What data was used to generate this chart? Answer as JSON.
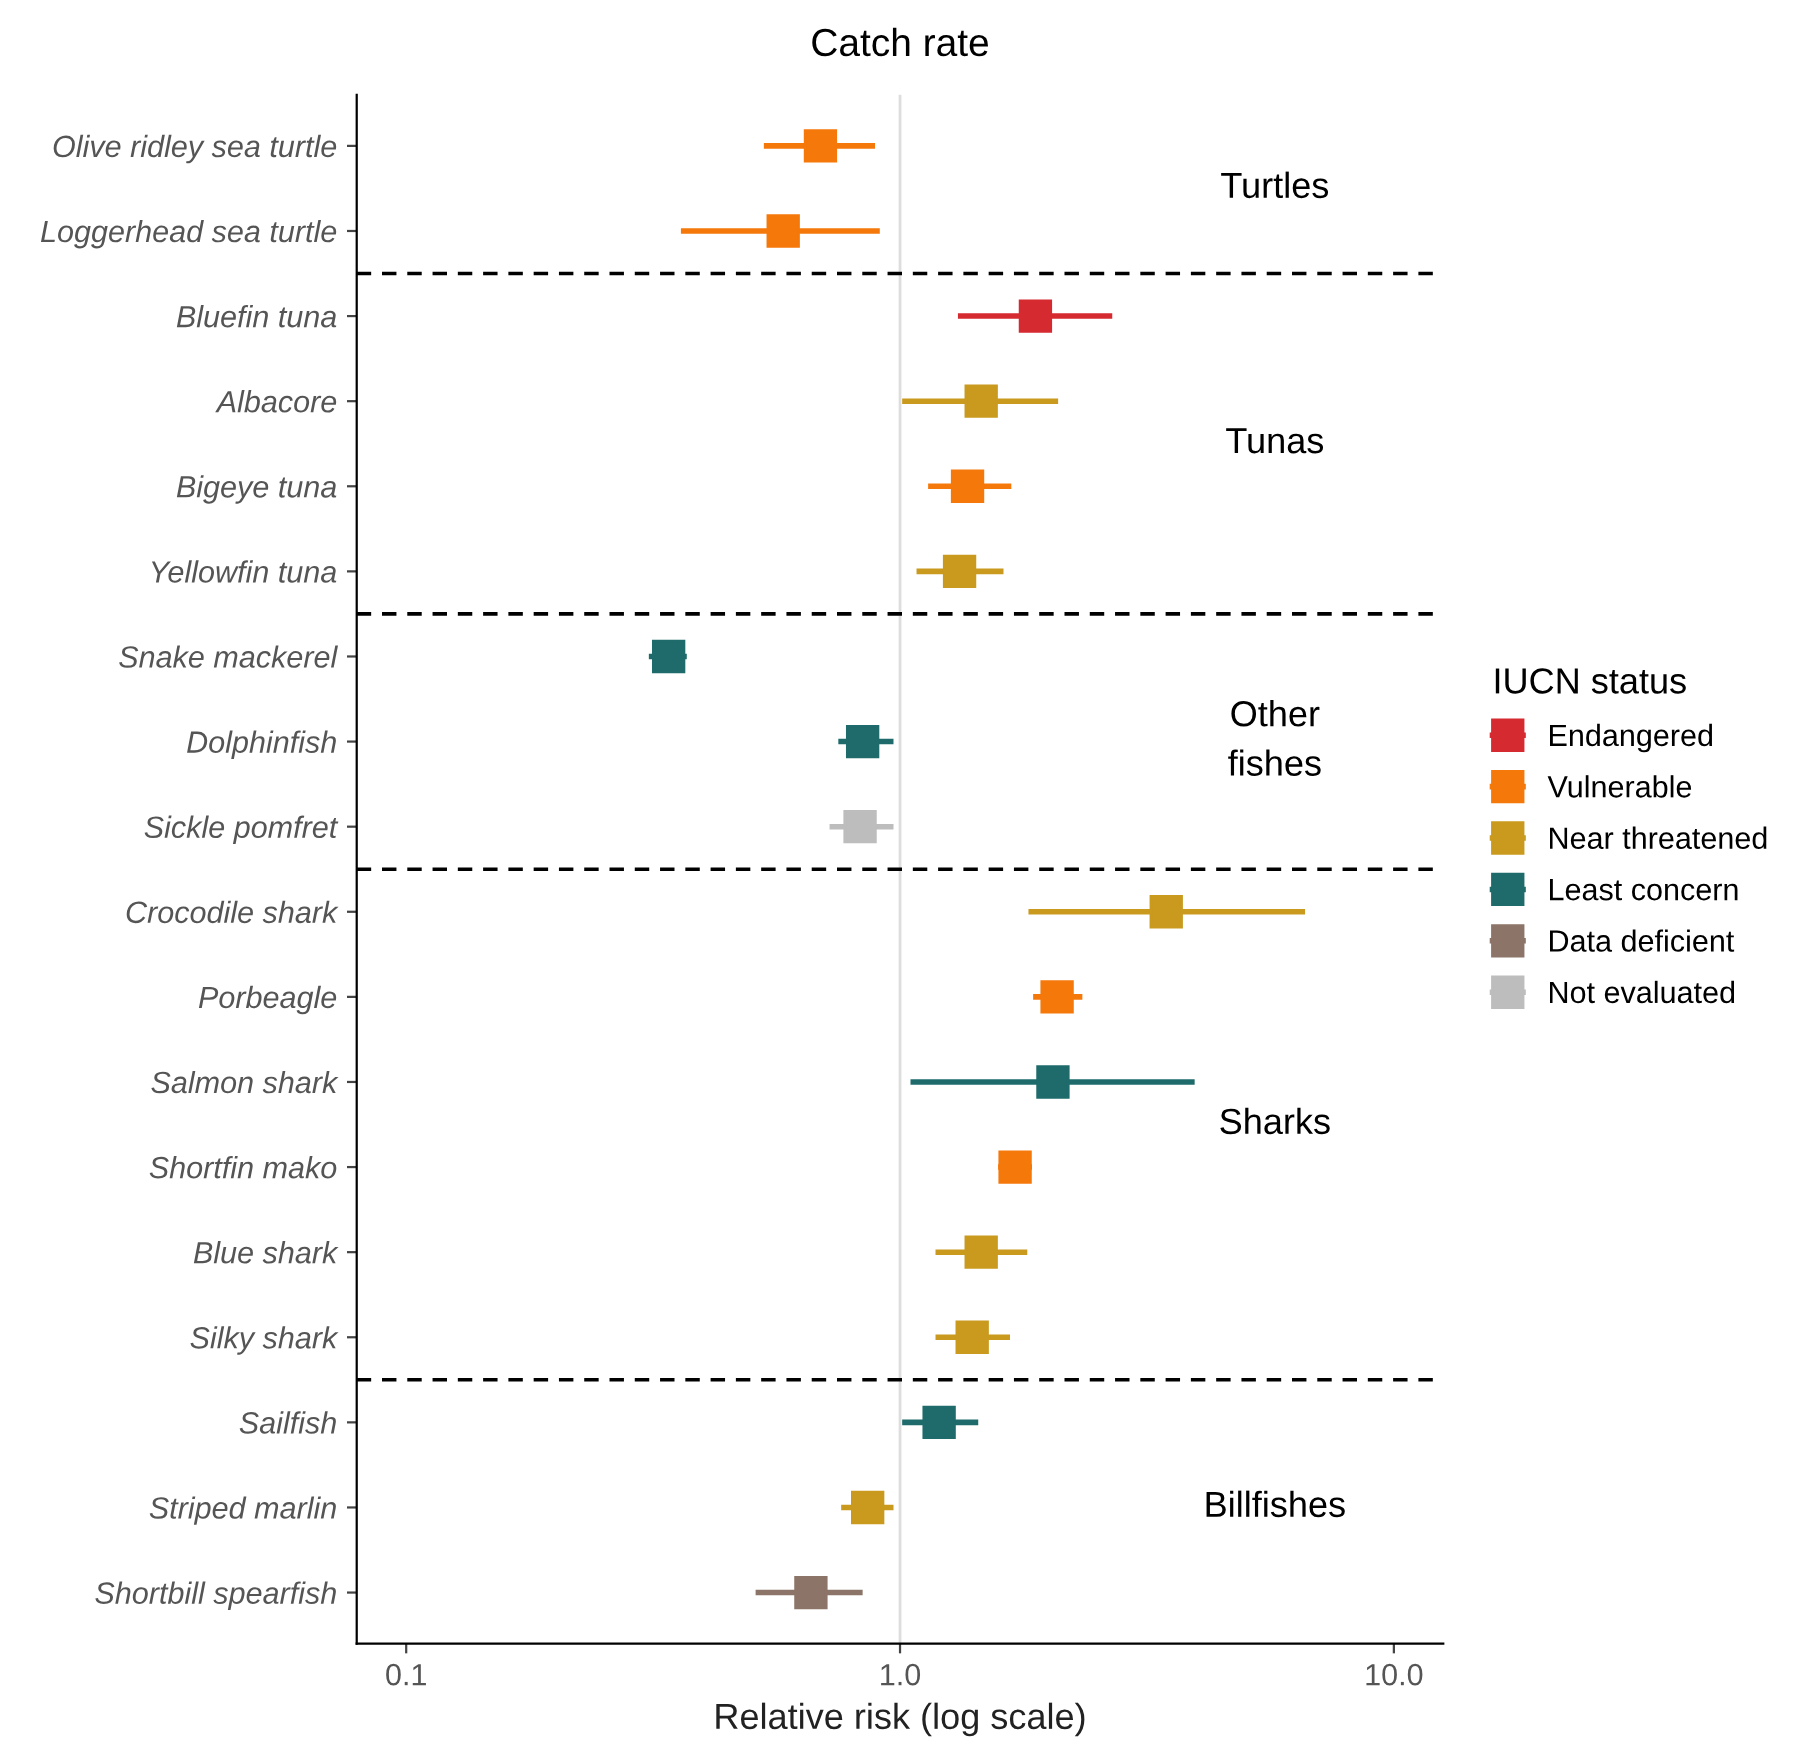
{
  "chart_data": {
    "type": "scatter",
    "title": "Catch rate",
    "xlabel": "Relative risk (log scale)",
    "legend_title": "IUCN status",
    "orientation": "horizontal",
    "log": "x",
    "marker": "square",
    "grid": false,
    "legend": "right",
    "categories": [
      "Olive ridley sea turtle",
      "Loggerhead sea turtle",
      "Bluefin tuna",
      "Albacore",
      "Bigeye tuna",
      "Yellowfin tuna",
      "Snake mackerel",
      "Dolphinfish",
      "Sickle pomfret",
      "Crocodile shark",
      "Porbeagle",
      "Salmon shark",
      "Shortfin mako",
      "Blue shark",
      "Silky shark",
      "Sailfish",
      "Striped marlin",
      "Shortbill spearfish"
    ],
    "xlim": [
      0.0794,
      12.59
    ],
    "xticks": [
      {
        "value": 0.1,
        "label": "0.1"
      },
      {
        "value": 1,
        "label": "1.0"
      },
      {
        "value": 10,
        "label": "10.0"
      }
    ],
    "series": [
      {
        "name": "Endangered",
        "color": "#d62a31",
        "values": [
          null,
          null,
          1.88,
          null,
          null,
          null,
          null,
          null,
          null,
          null,
          null,
          null,
          null,
          null,
          null,
          null,
          null,
          null
        ],
        "errors": [
          null,
          null,
          [
            1.31,
            2.69
          ],
          null,
          null,
          null,
          null,
          null,
          null,
          null,
          null,
          null,
          null,
          null,
          null,
          null,
          null,
          null
        ]
      },
      {
        "name": "Vulnerable",
        "color": "#f5780a",
        "values": [
          0.69,
          0.58,
          null,
          null,
          1.37,
          null,
          null,
          null,
          null,
          null,
          2.08,
          null,
          1.71,
          null,
          null,
          null,
          null,
          null
        ],
        "errors": [
          [
            0.53,
            0.89
          ],
          [
            0.36,
            0.91
          ],
          null,
          null,
          [
            1.14,
            1.68
          ],
          null,
          null,
          null,
          null,
          null,
          [
            1.86,
            2.34
          ],
          null,
          [
            1.58,
            1.85
          ],
          null,
          null,
          null,
          null,
          null
        ]
      },
      {
        "name": "Near threatened",
        "color": "#c99a1e",
        "values": [
          null,
          null,
          null,
          1.46,
          null,
          1.32,
          null,
          null,
          null,
          3.46,
          null,
          null,
          null,
          1.46,
          1.4,
          null,
          0.86,
          null
        ],
        "errors": [
          null,
          null,
          null,
          [
            1.01,
            2.09
          ],
          null,
          [
            1.08,
            1.62
          ],
          null,
          null,
          null,
          [
            1.82,
            6.61
          ],
          null,
          null,
          null,
          [
            1.18,
            1.81
          ],
          [
            1.18,
            1.67
          ],
          null,
          [
            0.76,
            0.97
          ],
          null
        ]
      },
      {
        "name": "Least concern",
        "color": "#1f6b6b",
        "values": [
          null,
          null,
          null,
          null,
          null,
          null,
          0.34,
          0.84,
          null,
          null,
          null,
          2.04,
          null,
          null,
          null,
          1.2,
          null,
          null
        ],
        "errors": [
          null,
          null,
          null,
          null,
          null,
          null,
          [
            0.31,
            0.37
          ],
          [
            0.75,
            0.97
          ],
          null,
          null,
          null,
          [
            1.05,
            3.95
          ],
          null,
          null,
          null,
          [
            1.01,
            1.44
          ],
          null,
          null
        ]
      },
      {
        "name": "Data deficient",
        "color": "#8c7468",
        "values": [
          null,
          null,
          null,
          null,
          null,
          null,
          null,
          null,
          null,
          null,
          null,
          null,
          null,
          null,
          null,
          null,
          null,
          0.66
        ],
        "errors": [
          null,
          null,
          null,
          null,
          null,
          null,
          null,
          null,
          null,
          null,
          null,
          null,
          null,
          null,
          null,
          null,
          null,
          [
            0.51,
            0.84
          ]
        ]
      },
      {
        "name": "Not evaluated",
        "color": "#bdbdbd",
        "values": [
          null,
          null,
          null,
          null,
          null,
          null,
          null,
          null,
          0.83,
          null,
          null,
          null,
          null,
          null,
          null,
          null,
          null,
          null
        ],
        "errors": [
          null,
          null,
          null,
          null,
          null,
          null,
          null,
          null,
          [
            0.72,
            0.97
          ],
          null,
          null,
          null,
          null,
          null,
          null,
          null,
          null,
          null
        ]
      }
    ],
    "ref_lines": [
      {
        "axis": "x",
        "value": 1,
        "color": "#dddddd",
        "line_style": "solid"
      }
    ],
    "annotations": [
      "Turtles",
      "Tunas",
      "Other\nfishes",
      "Sharks",
      "Billfishes"
    ]
  }
}
